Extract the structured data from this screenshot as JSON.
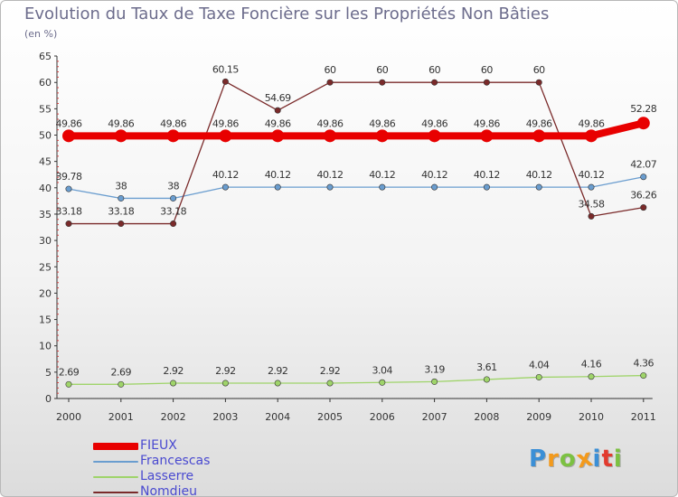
{
  "chart_data": {
    "type": "line",
    "title": "Evolution du Taux de Taxe Foncière sur les Propriétés Non Bâties",
    "subtitle": "(en %)",
    "xlabel": "",
    "ylabel": "",
    "x": [
      "2000",
      "2001",
      "2002",
      "2003",
      "2004",
      "2005",
      "2006",
      "2007",
      "2008",
      "2009",
      "2010",
      "2011"
    ],
    "ylim": [
      0,
      65
    ],
    "yticks": [
      "0",
      "5",
      "10",
      "15",
      "20",
      "25",
      "30",
      "35",
      "40",
      "45",
      "50",
      "55",
      "60",
      "65"
    ],
    "grid": false,
    "legend_position": "bottom-left",
    "series": [
      {
        "name": "FIEUX",
        "color": "#e80000",
        "values": [
          49.86,
          49.86,
          49.86,
          49.86,
          49.86,
          49.86,
          49.86,
          49.86,
          49.86,
          49.86,
          49.86,
          52.28
        ],
        "labels": [
          "49.86",
          "49.86",
          "49.86",
          "49.86",
          "49.86",
          "49.86",
          "49.86",
          "49.86",
          "49.86",
          "49.86",
          "49.86",
          "52.28"
        ]
      },
      {
        "name": "Francescas",
        "color": "#6a9dcf",
        "values": [
          39.78,
          38,
          38,
          40.12,
          40.12,
          40.12,
          40.12,
          40.12,
          40.12,
          40.12,
          40.12,
          42.07
        ],
        "labels": [
          "39.78",
          "38",
          "38",
          "40.12",
          "40.12",
          "40.12",
          "40.12",
          "40.12",
          "40.12",
          "40.12",
          "40.12",
          "42.07"
        ]
      },
      {
        "name": "Lasserre",
        "color": "#9fd46a",
        "values": [
          2.69,
          2.69,
          2.92,
          2.92,
          2.92,
          2.92,
          3.04,
          3.19,
          3.61,
          4.04,
          4.16,
          4.36
        ],
        "labels": [
          "2.69",
          "2.69",
          "2.92",
          "2.92",
          "2.92",
          "2.92",
          "3.04",
          "3.19",
          "3.61",
          "4.04",
          "4.16",
          "4.36"
        ]
      },
      {
        "name": "Nomdieu",
        "color": "#7a2a2a",
        "values": [
          33.18,
          33.18,
          33.18,
          60.15,
          54.69,
          60,
          60,
          60,
          60,
          60,
          34.58,
          36.26
        ],
        "labels": [
          "33.18",
          "33.18",
          "33.18",
          "60.15",
          "54.69",
          "60",
          "60",
          "60",
          "60",
          "60",
          "34.58",
          "36.26"
        ]
      }
    ]
  },
  "logo": {
    "text": "Proxiti",
    "letters": [
      {
        "ch": "P",
        "color": "#3b8fd6"
      },
      {
        "ch": "r",
        "color": "#f39a1c"
      },
      {
        "ch": "o",
        "color": "#7cc142"
      },
      {
        "ch": "x",
        "color": "#f39a1c"
      },
      {
        "ch": "i",
        "color": "#3b8fd6"
      },
      {
        "ch": "t",
        "color": "#e23b2e"
      },
      {
        "ch": "i",
        "color": "#7cc142"
      }
    ]
  }
}
